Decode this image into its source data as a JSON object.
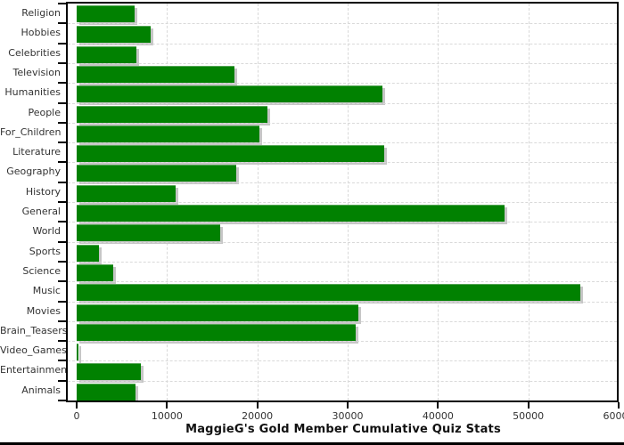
{
  "chart_data": {
    "type": "bar",
    "orientation": "horizontal",
    "title": "MaggieG's Gold Member Cumulative Quiz Stats",
    "categories": [
      "Religion",
      "Hobbies",
      "Celebrities",
      "Television",
      "Humanities",
      "People",
      "For_Children",
      "Literature",
      "Geography",
      "History",
      "General",
      "World",
      "Sports",
      "Science",
      "Music",
      "Movies",
      "Brain_Teasers",
      "Video_Games",
      "Entertainment",
      "Animals"
    ],
    "values": [
      6400,
      8200,
      6600,
      17500,
      33800,
      21100,
      20200,
      34000,
      17700,
      11000,
      47400,
      15900,
      2500,
      4000,
      55800,
      31200,
      30900,
      150,
      7100,
      6500
    ],
    "xlabel": "",
    "ylabel": "",
    "xlim": [
      0,
      60000
    ],
    "x_ticks": [
      0,
      10000,
      20000,
      30000,
      40000,
      50000,
      60000
    ],
    "x_tick_labels": [
      "0",
      "10000",
      "20000",
      "30000",
      "40000",
      "50000",
      "60000"
    ],
    "grid": "dashed",
    "legend": "none",
    "bar_color": "#018101",
    "bar_shadow_color": "#c6c6c6",
    "gridline_color": "#d9d9d9",
    "frame_color": "#000000",
    "text_color": "#333333"
  }
}
